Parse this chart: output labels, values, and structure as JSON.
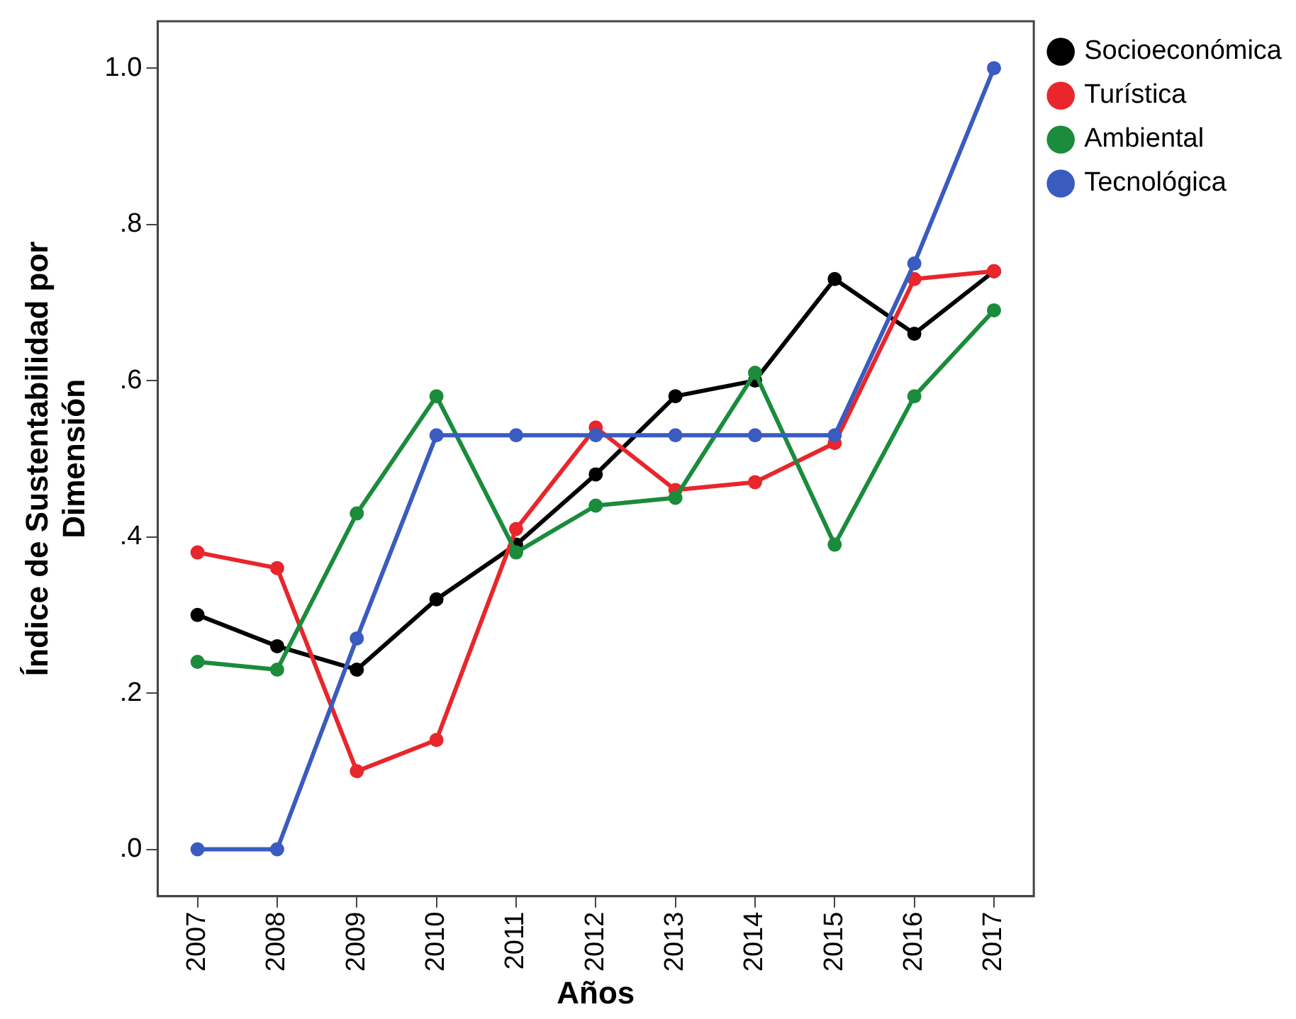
{
  "chart_data": {
    "type": "line",
    "xlabel": "Años",
    "ylabel": "Índice de Sustentabilidad por Dimensión",
    "categories": [
      "2007",
      "2008",
      "2009",
      "2010",
      "2011",
      "2012",
      "2013",
      "2014",
      "2015",
      "2016",
      "2017"
    ],
    "series": [
      {
        "name": "Socioeconómica",
        "color": "#000000",
        "values": [
          0.3,
          0.26,
          0.23,
          0.32,
          0.39,
          0.48,
          0.58,
          0.6,
          0.73,
          0.66,
          0.74
        ]
      },
      {
        "name": "Turística",
        "color": "#e8262b",
        "values": [
          0.38,
          0.36,
          0.1,
          0.14,
          0.41,
          0.54,
          0.46,
          0.47,
          0.52,
          0.73,
          0.74
        ]
      },
      {
        "name": "Ambiental",
        "color": "#1a8c3c",
        "values": [
          0.24,
          0.23,
          0.43,
          0.58,
          0.38,
          0.44,
          0.45,
          0.61,
          0.39,
          0.58,
          0.69
        ]
      },
      {
        "name": "Tecnológica",
        "color": "#3a5bbf",
        "values": [
          0,
          0,
          0.27,
          0.53,
          0.53,
          0.53,
          0.53,
          0.53,
          0.53,
          0.75,
          1.0
        ]
      }
    ],
    "ylim": [
      -0.06,
      1.06
    ],
    "yticks": [
      {
        "value": 0,
        "label": ".0"
      },
      {
        "value": 0.2,
        "label": ".2"
      },
      {
        "value": 0.4,
        "label": ".4"
      },
      {
        "value": 0.6,
        "label": ".6"
      },
      {
        "value": 0.8,
        "label": ".8"
      },
      {
        "value": 1.0,
        "label": "1.0"
      }
    ],
    "grid": false,
    "legend": "top right",
    "marker": "circle",
    "line_style": "solid"
  }
}
